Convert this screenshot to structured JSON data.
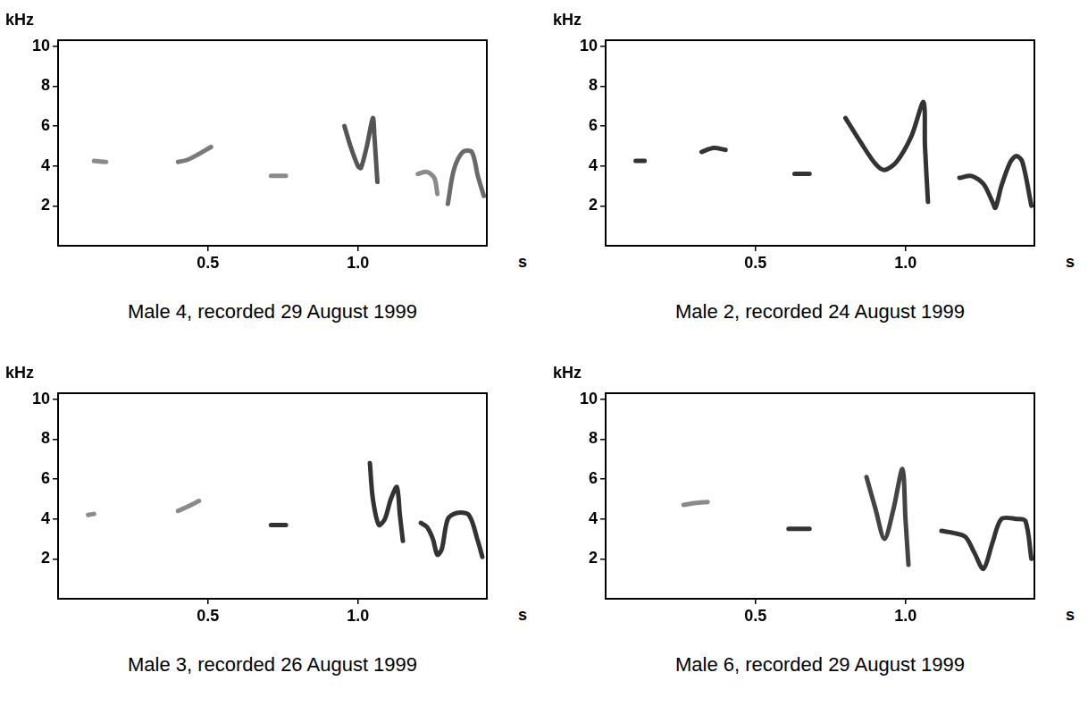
{
  "chart_data": [
    {
      "type": "line",
      "title": "Male 4, recorded 29 August 1999",
      "x_label": "s",
      "y_label": "kHz",
      "xlim": [
        0,
        1.43
      ],
      "ylim": [
        0,
        10.3
      ],
      "xticks": [
        0.5,
        {
          "value": 1,
          "label": "1.0"
        }
      ],
      "yticks": [
        2,
        4,
        6,
        8,
        10
      ],
      "grid": false,
      "series": [
        {
          "color": "#8a8a8a",
          "x": [
            0.12,
            0.16
          ],
          "values": [
            4.25,
            4.2
          ]
        },
        {
          "color": "#7a7a7a",
          "x": [
            0.4,
            0.43,
            0.47,
            0.51
          ],
          "values": [
            4.2,
            4.3,
            4.6,
            4.95
          ]
        },
        {
          "color": "#8a8a8a",
          "x": [
            0.71,
            0.76
          ],
          "values": [
            3.5,
            3.5
          ]
        },
        {
          "color": "#555555",
          "x": [
            0.955,
            0.975,
            1.0,
            1.01,
            1.03,
            1.05,
            1.055,
            1.065
          ],
          "values": [
            6.0,
            5.0,
            4.0,
            3.9,
            5.0,
            6.4,
            5.5,
            3.2
          ]
        },
        {
          "color": "#8a8a8a",
          "x": [
            1.2,
            1.23,
            1.255,
            1.265
          ],
          "values": [
            3.6,
            3.7,
            3.4,
            2.6
          ]
        },
        {
          "color": "#6a6a6a",
          "x": [
            1.3,
            1.32,
            1.35,
            1.38,
            1.4,
            1.42
          ],
          "values": [
            2.1,
            3.8,
            4.7,
            4.7,
            3.5,
            2.5
          ]
        }
      ]
    },
    {
      "type": "line",
      "title": "Male 2, recorded 24 August 1999",
      "x_label": "s",
      "y_label": "kHz",
      "xlim": [
        0,
        1.43
      ],
      "ylim": [
        0,
        10.3
      ],
      "xticks": [
        0.5,
        {
          "value": 1,
          "label": "1.0"
        }
      ],
      "yticks": [
        2,
        4,
        6,
        8,
        10
      ],
      "grid": false,
      "series": [
        {
          "color": "#333333",
          "x": [
            0.1,
            0.13
          ],
          "values": [
            4.25,
            4.25
          ]
        },
        {
          "color": "#333333",
          "x": [
            0.32,
            0.36,
            0.4
          ],
          "values": [
            4.7,
            4.9,
            4.8
          ]
        },
        {
          "color": "#333333",
          "x": [
            0.63,
            0.68
          ],
          "values": [
            3.6,
            3.6
          ]
        },
        {
          "color": "#333333",
          "x": [
            0.8,
            0.85,
            0.9,
            0.93,
            0.97,
            1.02,
            1.06,
            1.065,
            1.075
          ],
          "values": [
            6.4,
            5.2,
            4.1,
            3.8,
            4.2,
            5.5,
            7.2,
            5.0,
            2.2
          ]
        },
        {
          "color": "#333333",
          "x": [
            1.18,
            1.22,
            1.26,
            1.29,
            1.3,
            1.32,
            1.35,
            1.37,
            1.39,
            1.42
          ],
          "values": [
            3.4,
            3.5,
            3.1,
            2.2,
            1.9,
            3.0,
            4.2,
            4.5,
            4.2,
            2.0
          ]
        }
      ]
    },
    {
      "type": "line",
      "title": "Male 3, recorded 26 August 1999",
      "x_label": "s",
      "y_label": "kHz",
      "xlim": [
        0,
        1.43
      ],
      "ylim": [
        0,
        10.3
      ],
      "xticks": [
        0.5,
        {
          "value": 1,
          "label": "1.0"
        }
      ],
      "yticks": [
        2,
        4,
        6,
        8,
        10
      ],
      "grid": false,
      "series": [
        {
          "color": "#8a8a8a",
          "x": [
            0.1,
            0.12
          ],
          "values": [
            4.2,
            4.25
          ]
        },
        {
          "color": "#8a8a8a",
          "x": [
            0.4,
            0.43,
            0.47
          ],
          "values": [
            4.4,
            4.6,
            4.9
          ]
        },
        {
          "color": "#333333",
          "x": [
            0.71,
            0.76
          ],
          "values": [
            3.7,
            3.7
          ]
        },
        {
          "color": "#333333",
          "x": [
            1.04,
            1.05,
            1.07,
            1.09,
            1.11,
            1.13,
            1.14,
            1.15
          ],
          "values": [
            6.8,
            5.0,
            3.7,
            4.0,
            5.0,
            5.6,
            4.2,
            2.9
          ]
        },
        {
          "color": "#333333",
          "x": [
            1.21,
            1.23,
            1.25,
            1.265,
            1.28,
            1.3,
            1.33,
            1.37,
            1.4,
            1.415
          ],
          "values": [
            3.8,
            3.6,
            3.0,
            2.2,
            2.5,
            4.0,
            4.3,
            4.2,
            2.9,
            2.1
          ]
        }
      ]
    },
    {
      "type": "line",
      "title": "Male 6, recorded 29 August 1999",
      "x_label": "s",
      "y_label": "kHz",
      "xlim": [
        0,
        1.43
      ],
      "ylim": [
        0,
        10.3
      ],
      "xticks": [
        0.5,
        {
          "value": 1,
          "label": "1.0"
        }
      ],
      "yticks": [
        2,
        4,
        6,
        8,
        10
      ],
      "grid": false,
      "series": [
        {
          "color": "#8a8a8a",
          "x": [
            0.26,
            0.3,
            0.34
          ],
          "values": [
            4.7,
            4.8,
            4.85
          ]
        },
        {
          "color": "#333333",
          "x": [
            0.61,
            0.68
          ],
          "values": [
            3.5,
            3.5
          ]
        },
        {
          "color": "#444444",
          "x": [
            0.87,
            0.9,
            0.93,
            0.96,
            0.99,
            1.0,
            1.01
          ],
          "values": [
            6.1,
            4.5,
            3.0,
            4.5,
            6.5,
            4.0,
            1.7
          ]
        },
        {
          "color": "#333333",
          "x": [
            1.12,
            1.16,
            1.2,
            1.23,
            1.26,
            1.29,
            1.32,
            1.37,
            1.4,
            1.42
          ],
          "values": [
            3.4,
            3.3,
            3.1,
            2.3,
            1.5,
            2.8,
            4.0,
            4.0,
            3.9,
            2.0
          ]
        }
      ]
    }
  ]
}
